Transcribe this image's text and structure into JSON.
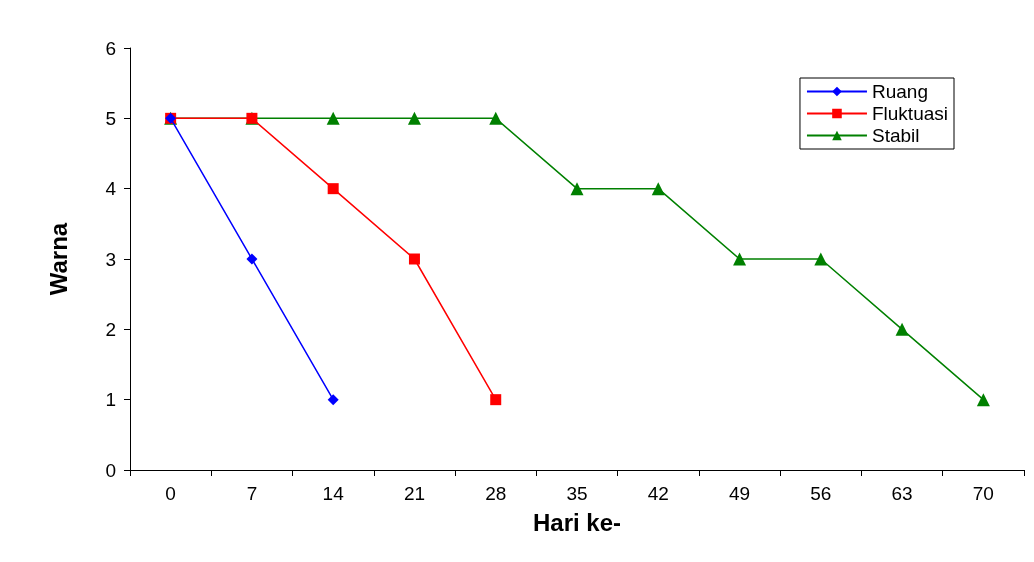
{
  "chart_data": {
    "type": "line",
    "xlabel": "Hari ke-",
    "ylabel": "Warna",
    "categories": [
      "0",
      "7",
      "14",
      "21",
      "28",
      "35",
      "42",
      "49",
      "56",
      "63",
      "70"
    ],
    "series": [
      {
        "name": "Ruang",
        "color": "#0000ff",
        "marker": "diamond",
        "values": [
          5,
          3,
          1,
          null,
          null,
          null,
          null,
          null,
          null,
          null,
          null
        ]
      },
      {
        "name": "Fluktuasi",
        "color": "#ff0000",
        "marker": "square",
        "values": [
          5,
          5,
          4,
          3,
          1,
          null,
          null,
          null,
          null,
          null,
          null
        ]
      },
      {
        "name": "Stabil",
        "color": "#008000",
        "marker": "triangle",
        "values": [
          5,
          5,
          5,
          5,
          5,
          4,
          4,
          3,
          3,
          2,
          1
        ]
      }
    ],
    "ylim": [
      0,
      6
    ],
    "yticks": [
      0,
      1,
      2,
      3,
      4,
      5,
      6
    ],
    "grid": false,
    "legend": "top right",
    "line_style": "solid"
  }
}
